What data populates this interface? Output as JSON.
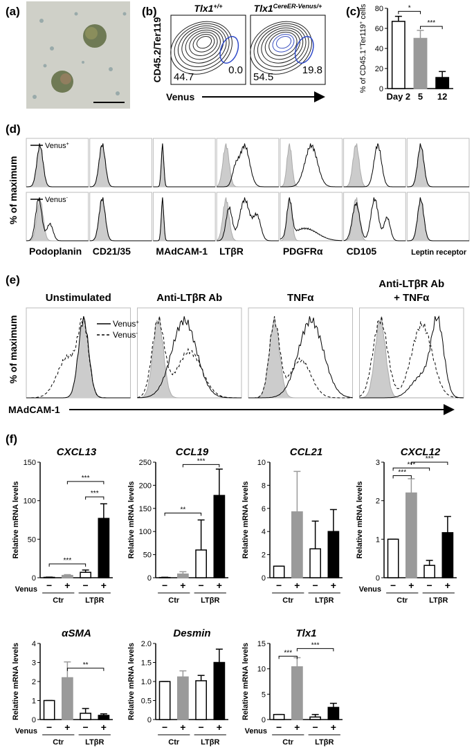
{
  "panels": {
    "a": {
      "label": "(a)"
    },
    "b": {
      "label": "(b)",
      "ylabel": "CD45.2/Ter119",
      "xlabel": "Venus",
      "plots": [
        {
          "title": [
            "Tlx1",
            "+/+"
          ],
          "gates": [
            "44.7",
            "0.0"
          ]
        },
        {
          "title": [
            "Tlx1",
            "CereER-Venus/+"
          ],
          "gates": [
            "54.5",
            "19.8"
          ]
        }
      ]
    },
    "c": {
      "label": "(c)",
      "chart": {
        "type": "bar",
        "categories": [
          "Day 2",
          "5",
          "12"
        ],
        "values": [
          67,
          50,
          11
        ],
        "errors": [
          5,
          8,
          6
        ],
        "colors": [
          "#ffffff",
          "#9a9a9a",
          "#000000"
        ],
        "ylim": [
          0,
          80
        ],
        "yticks": [
          0,
          20,
          40,
          60,
          80
        ],
        "ylabel": [
          "% of CD45.1",
          "+",
          "Ter119",
          "+",
          " cells"
        ],
        "significance": [
          {
            "from": 0,
            "to": 1,
            "y": 77,
            "label": "*"
          },
          {
            "from": 1,
            "to": 2,
            "y": 62,
            "label": "***"
          }
        ]
      }
    },
    "d": {
      "label": "(d)",
      "ylabel": "% of maximum",
      "legend": [
        [
          "Venus",
          "+"
        ],
        [
          "Venus",
          "-"
        ]
      ],
      "markers": [
        "Podoplanin",
        "CD21/35",
        "MAdCAM-1",
        "LTβR",
        "PDGFRα",
        "CD105",
        "Leptin receptor"
      ]
    },
    "e": {
      "label": "(e)",
      "ylabel": "% of maximum",
      "xlabel": "MAdCAM-1",
      "legend": [
        [
          "Venus",
          "+"
        ],
        [
          "Venus",
          "-"
        ]
      ],
      "conditions": [
        [
          "Unstimulated"
        ],
        [
          "Anti-LTβR Ab"
        ],
        [
          "TNFα"
        ],
        [
          "Anti-LTβR Ab",
          "+ TNFα"
        ]
      ]
    },
    "f": {
      "label": "(f)",
      "ylabel": "Relative mRNA levels",
      "x_title": "Venus",
      "signs": [
        "−",
        "+",
        "−",
        "+"
      ],
      "groups": [
        "Ctr",
        "LTβR"
      ],
      "colors": [
        "#ffffff",
        "#9a9a9a",
        "#ffffff",
        "#000000"
      ],
      "charts": [
        {
          "type": "bar",
          "title": "CXCL13",
          "values": [
            0.5,
            3,
            7,
            77
          ],
          "errors": [
            0.3,
            1,
            3,
            19
          ],
          "ylim": [
            0,
            150
          ],
          "yticks": [
            0,
            50,
            100,
            150
          ],
          "show_x_title": true,
          "significance": [
            {
              "from": 0,
              "to": 2,
              "y": 18,
              "label": "***"
            },
            {
              "from": 1,
              "to": 3,
              "y": 125,
              "label": "***"
            },
            {
              "from": 2,
              "to": 3,
              "y": 105,
              "label": "***"
            }
          ]
        },
        {
          "type": "bar",
          "title": "CCL19",
          "values": [
            0.5,
            8,
            60,
            178
          ],
          "errors": [
            0.5,
            5,
            65,
            57
          ],
          "ylim": [
            0,
            250
          ],
          "yticks": [
            0,
            50,
            100,
            150,
            200,
            250
          ],
          "show_x_title": false,
          "significance": [
            {
              "from": 0,
              "to": 2,
              "y": 140,
              "label": "**"
            },
            {
              "from": 1,
              "to": 3,
              "y": 245,
              "label": "***"
            }
          ]
        },
        {
          "type": "bar",
          "title": "CCL21",
          "values": [
            1,
            5.7,
            2.5,
            4
          ],
          "errors": [
            0,
            3.5,
            2.4,
            1.9
          ],
          "ylim": [
            0,
            10
          ],
          "yticks": [
            0,
            2,
            4,
            6,
            8,
            10
          ],
          "show_x_title": false,
          "significance": []
        },
        {
          "type": "bar",
          "title": "CXCL12",
          "values": [
            1,
            2.2,
            0.32,
            1.17
          ],
          "errors": [
            0,
            0.37,
            0.13,
            0.42
          ],
          "ylim": [
            0,
            3
          ],
          "yticks": [
            0,
            1,
            2,
            3
          ],
          "show_x_title": true,
          "significance": [
            {
              "from": 0,
              "to": 1,
              "y": 2.65,
              "label": "***"
            },
            {
              "from": 0,
              "to": 2,
              "y": 2.85,
              "label": "***"
            },
            {
              "from": 1,
              "to": 3,
              "y": 3,
              "label": "***"
            }
          ]
        },
        {
          "type": "bar",
          "title": "αSMA",
          "values": [
            1,
            2.2,
            0.33,
            0.22
          ],
          "errors": [
            0,
            0.83,
            0.25,
            0.08
          ],
          "ylim": [
            0,
            4
          ],
          "yticks": [
            0,
            1,
            2,
            3,
            4
          ],
          "show_x_title": true,
          "significance": [
            {
              "from": 1,
              "to": 3,
              "y": 2.7,
              "label": "**"
            }
          ]
        },
        {
          "type": "bar",
          "title": "Desmin",
          "values": [
            1,
            1.12,
            1.02,
            1.5
          ],
          "errors": [
            0,
            0.16,
            0.14,
            0.35
          ],
          "ylim": [
            0,
            2
          ],
          "yticks": [
            0,
            0.5,
            {
              "value": 1,
              "label": "1.0"
            },
            1.5,
            {
              "value": 2,
              "label": "2.0"
            }
          ],
          "show_x_title": false,
          "significance": []
        },
        {
          "type": "bar",
          "title": "Tlx1",
          "values": [
            1,
            10.4,
            0.5,
            2.4
          ],
          "errors": [
            0,
            1.8,
            0.5,
            0.8
          ],
          "ylim": [
            0,
            15
          ],
          "yticks": [
            0,
            5,
            10,
            15
          ],
          "show_x_title": true,
          "significance": [
            {
              "from": 0,
              "to": 1,
              "y": 12.5,
              "label": "***"
            },
            {
              "from": 1,
              "to": 3,
              "y": 14,
              "label": "***"
            }
          ]
        }
      ]
    }
  }
}
